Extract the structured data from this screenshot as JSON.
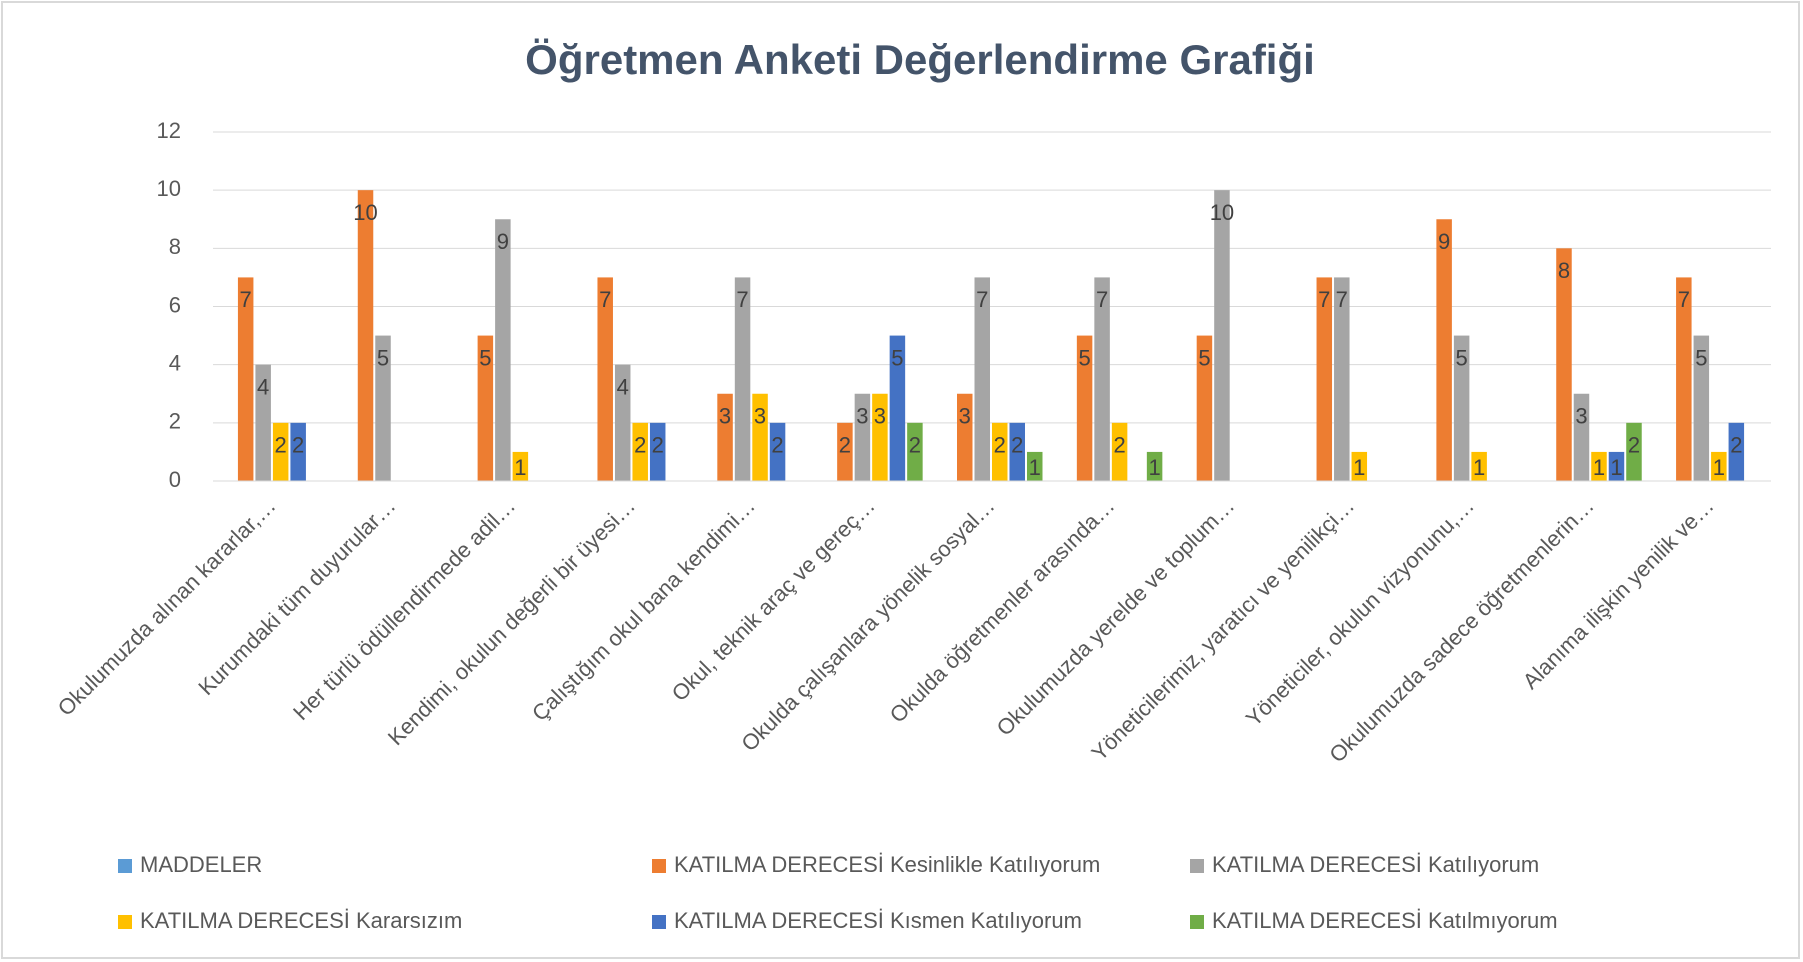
{
  "chart_data": {
    "type": "bar",
    "title": "Öğretmen Anketi Değerlendirme Grafiği",
    "categories": [
      "Okulumuzda alınan kararlar,…",
      "Kurumdaki tüm duyurular…",
      "Her türlü ödüllendirmede adil…",
      "Kendimi, okulun değerli bir üyesi…",
      "Çalıştığım okul bana kendimi…",
      "Okul, teknik araç ve gereç…",
      "Okulda çalışanlara yönelik sosyal…",
      "Okulda öğretmenler arasında…",
      "Okulumuzda yerelde ve toplum…",
      "Yöneticilerimiz, yaratıcı ve yenilikçi…",
      "Yöneticiler, okulun vizyonunu,…",
      "Okulumuzda sadece öğretmenlerin…",
      "Alanıma ilişkin yenilik ve…"
    ],
    "series": [
      {
        "name": "MADDELER",
        "color": "#5b9bd5",
        "values": [
          null,
          null,
          null,
          null,
          null,
          null,
          null,
          null,
          null,
          null,
          null,
          null,
          null
        ]
      },
      {
        "name": "KATILMA DERECESİ Kesinlikle Katılıyorum",
        "color": "#ed7d31",
        "values": [
          7,
          10,
          5,
          7,
          3,
          2,
          3,
          5,
          5,
          7,
          9,
          8,
          7
        ]
      },
      {
        "name": "KATILMA DERECESİ Katılıyorum",
        "color": "#a5a5a5",
        "values": [
          4,
          5,
          9,
          4,
          7,
          3,
          7,
          7,
          10,
          7,
          5,
          3,
          5
        ]
      },
      {
        "name": "KATILMA DERECESİ Kararsızım",
        "color": "#ffc000",
        "values": [
          2,
          null,
          1,
          2,
          3,
          3,
          2,
          2,
          null,
          1,
          1,
          1,
          1
        ]
      },
      {
        "name": "KATILMA DERECESİ Kısmen Katılıyorum",
        "color": "#4472c4",
        "values": [
          2,
          null,
          null,
          2,
          2,
          5,
          2,
          null,
          null,
          null,
          null,
          1,
          2
        ]
      },
      {
        "name": "KATILMA DERECESİ Katılmıyorum",
        "color": "#70ad47",
        "values": [
          null,
          null,
          null,
          null,
          null,
          2,
          1,
          1,
          null,
          null,
          null,
          2,
          null
        ]
      }
    ],
    "ylim": [
      0,
      12
    ],
    "yticks": [
      0,
      2,
      4,
      6,
      8,
      10,
      12
    ],
    "grid": true,
    "legend": "bottom"
  }
}
